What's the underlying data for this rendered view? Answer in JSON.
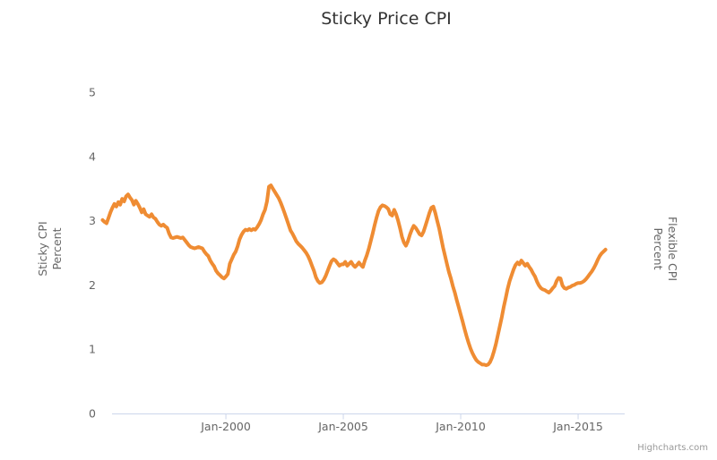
{
  "page": {
    "title": "Sticky Price CPI"
  },
  "colors": {
    "background": "#ffffff",
    "title_text": "#333333",
    "axis_text": "#666666",
    "axis_line": "#ccd6eb",
    "credit_text": "#999999",
    "series_orange": "#ef8c33"
  },
  "chart_data": {
    "type": "line",
    "title": "Sticky Price CPI",
    "grid": "none",
    "legend": "none",
    "credit": "Highcharts.com",
    "left_axis": {
      "title_lines": [
        "Sticky CPI",
        "Percent"
      ],
      "tick_labels": [
        "0",
        "1",
        "2",
        "3",
        "4",
        "5"
      ],
      "range": [
        0,
        5
      ]
    },
    "right_axis": {
      "title_lines": [
        "Flexible CPI",
        "Percent"
      ]
    },
    "x_axis": {
      "tick_labels": [
        "Jan-2000",
        "Jan-2005",
        "Jan-2010",
        "Jan-2015"
      ],
      "tick_month_indices": [
        63,
        123,
        183,
        243
      ],
      "start_month": "Oct-1994",
      "end_month": "Mar-2016",
      "frequency": "monthly"
    },
    "series": [
      {
        "name": "Sticky CPI",
        "color": "#ef8c33",
        "line_width": 4,
        "values": [
          3.01,
          2.98,
          2.96,
          3.04,
          3.13,
          3.2,
          3.26,
          3.22,
          3.29,
          3.25,
          3.34,
          3.3,
          3.38,
          3.41,
          3.36,
          3.32,
          3.25,
          3.31,
          3.26,
          3.2,
          3.13,
          3.18,
          3.1,
          3.08,
          3.06,
          3.1,
          3.05,
          3.03,
          2.98,
          2.94,
          2.92,
          2.94,
          2.91,
          2.89,
          2.8,
          2.74,
          2.73,
          2.74,
          2.75,
          2.74,
          2.73,
          2.74,
          2.7,
          2.66,
          2.62,
          2.59,
          2.58,
          2.57,
          2.58,
          2.59,
          2.58,
          2.57,
          2.52,
          2.48,
          2.45,
          2.38,
          2.33,
          2.29,
          2.22,
          2.18,
          2.15,
          2.12,
          2.1,
          2.13,
          2.17,
          2.33,
          2.4,
          2.47,
          2.52,
          2.6,
          2.71,
          2.78,
          2.83,
          2.86,
          2.85,
          2.87,
          2.85,
          2.87,
          2.86,
          2.9,
          2.95,
          3.01,
          3.1,
          3.17,
          3.3,
          3.53,
          3.55,
          3.5,
          3.45,
          3.4,
          3.35,
          3.28,
          3.2,
          3.12,
          3.03,
          2.94,
          2.85,
          2.8,
          2.74,
          2.68,
          2.64,
          2.61,
          2.58,
          2.54,
          2.5,
          2.45,
          2.38,
          2.3,
          2.22,
          2.12,
          2.06,
          2.03,
          2.04,
          2.08,
          2.14,
          2.22,
          2.3,
          2.37,
          2.4,
          2.38,
          2.34,
          2.3,
          2.32,
          2.32,
          2.36,
          2.3,
          2.33,
          2.36,
          2.31,
          2.28,
          2.31,
          2.35,
          2.31,
          2.28,
          2.38,
          2.46,
          2.56,
          2.68,
          2.8,
          2.93,
          3.05,
          3.15,
          3.21,
          3.24,
          3.23,
          3.21,
          3.18,
          3.1,
          3.08,
          3.17,
          3.1,
          3.0,
          2.88,
          2.75,
          2.66,
          2.61,
          2.68,
          2.78,
          2.86,
          2.92,
          2.89,
          2.84,
          2.79,
          2.77,
          2.83,
          2.92,
          3.02,
          3.12,
          3.2,
          3.22,
          3.12,
          3.0,
          2.88,
          2.73,
          2.58,
          2.45,
          2.32,
          2.2,
          2.1,
          1.98,
          1.88,
          1.76,
          1.65,
          1.54,
          1.43,
          1.31,
          1.2,
          1.1,
          1.01,
          0.94,
          0.88,
          0.83,
          0.8,
          0.78,
          0.76,
          0.76,
          0.75,
          0.76,
          0.8,
          0.87,
          0.97,
          1.08,
          1.22,
          1.36,
          1.5,
          1.66,
          1.8,
          1.94,
          2.06,
          2.15,
          2.24,
          2.31,
          2.35,
          2.32,
          2.38,
          2.34,
          2.3,
          2.33,
          2.28,
          2.24,
          2.18,
          2.13,
          2.05,
          1.99,
          1.95,
          1.93,
          1.92,
          1.9,
          1.88,
          1.91,
          1.95,
          1.98,
          2.06,
          2.11,
          2.1,
          1.99,
          1.95,
          1.94,
          1.96,
          1.97,
          1.99,
          2.0,
          2.02,
          2.03,
          2.03,
          2.04,
          2.06,
          2.09,
          2.13,
          2.17,
          2.21,
          2.26,
          2.32,
          2.39,
          2.45,
          2.49,
          2.52,
          2.55
        ]
      }
    ]
  }
}
